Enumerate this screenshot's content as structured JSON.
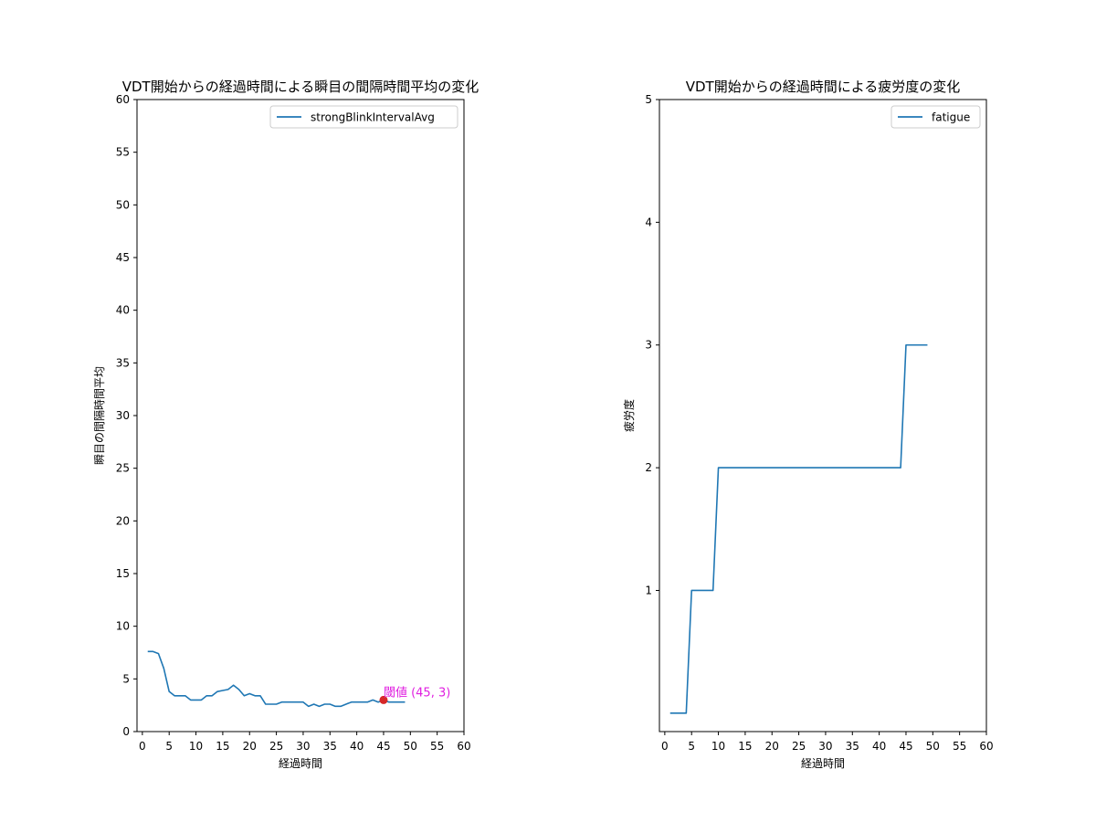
{
  "chart_data": [
    {
      "type": "line",
      "title": "VDT開始からの経過時間による瞬目の間隔時間平均の変化",
      "xlabel": "経過時間",
      "ylabel": "瞬目の間隔時間平均",
      "xlim": [
        -1,
        60
      ],
      "ylim": [
        0,
        60
      ],
      "xticks": [
        "0",
        "5",
        "10",
        "15",
        "20",
        "25",
        "30",
        "35",
        "40",
        "45",
        "50",
        "55",
        "60"
      ],
      "yticks": [
        "0",
        "5",
        "10",
        "15",
        "20",
        "25",
        "30",
        "35",
        "40",
        "45",
        "50",
        "55",
        "60"
      ],
      "xtick_values": [
        0,
        5,
        10,
        15,
        20,
        25,
        30,
        35,
        40,
        45,
        50,
        55,
        60
      ],
      "ytick_values": [
        0,
        5,
        10,
        15,
        20,
        25,
        30,
        35,
        40,
        45,
        50,
        55,
        60
      ],
      "grid": false,
      "legend": "top-right",
      "series": [
        {
          "name": "strongBlinkIntervalAvg",
          "color": "#1f77b4",
          "x": [
            1,
            2,
            3,
            4,
            5,
            6,
            7,
            8,
            9,
            10,
            11,
            12,
            13,
            14,
            15,
            16,
            17,
            18,
            19,
            20,
            21,
            22,
            23,
            24,
            25,
            26,
            27,
            28,
            29,
            30,
            31,
            32,
            33,
            34,
            35,
            36,
            37,
            38,
            39,
            40,
            41,
            42,
            43,
            44,
            45,
            46,
            47,
            48,
            49
          ],
          "y": [
            7.6,
            7.6,
            7.4,
            6.0,
            3.8,
            3.4,
            3.4,
            3.4,
            3.0,
            3.0,
            3.0,
            3.4,
            3.4,
            3.8,
            3.9,
            4.0,
            4.4,
            4.0,
            3.4,
            3.6,
            3.4,
            3.4,
            2.6,
            2.6,
            2.6,
            2.8,
            2.8,
            2.8,
            2.8,
            2.8,
            2.4,
            2.6,
            2.4,
            2.6,
            2.6,
            2.4,
            2.4,
            2.6,
            2.8,
            2.8,
            2.8,
            2.8,
            3.0,
            2.8,
            3.0,
            2.8,
            2.8,
            2.8,
            2.8
          ]
        }
      ],
      "annotation": {
        "text": "閾値 (45, 3)",
        "x": 45,
        "y": 3,
        "color": "#e020e0",
        "marker_color": "#d62728"
      }
    },
    {
      "type": "line",
      "title": "VDT開始からの経過時間による疲労度の変化",
      "xlabel": "経過時間",
      "ylabel": "疲労度",
      "xlim": [
        -1,
        60
      ],
      "ylim": [
        -0.15,
        5
      ],
      "xticks": [
        "0",
        "5",
        "10",
        "15",
        "20",
        "25",
        "30",
        "35",
        "40",
        "45",
        "50",
        "55",
        "60"
      ],
      "yticks": [
        "1",
        "2",
        "3",
        "4",
        "5"
      ],
      "xtick_values": [
        0,
        5,
        10,
        15,
        20,
        25,
        30,
        35,
        40,
        45,
        50,
        55,
        60
      ],
      "ytick_values": [
        1,
        2,
        3,
        4,
        5
      ],
      "grid": false,
      "legend": "top-right",
      "series": [
        {
          "name": "fatigue",
          "color": "#1f77b4",
          "x": [
            1,
            2,
            3,
            4,
            5,
            6,
            7,
            8,
            9,
            10,
            11,
            12,
            13,
            14,
            15,
            16,
            17,
            18,
            19,
            20,
            21,
            22,
            23,
            24,
            25,
            26,
            27,
            28,
            29,
            30,
            31,
            32,
            33,
            34,
            35,
            36,
            37,
            38,
            39,
            40,
            41,
            42,
            43,
            44,
            45,
            46,
            47,
            48,
            49
          ],
          "y": [
            0,
            0,
            0,
            0,
            1,
            1,
            1,
            1,
            1,
            2,
            2,
            2,
            2,
            2,
            2,
            2,
            2,
            2,
            2,
            2,
            2,
            2,
            2,
            2,
            2,
            2,
            2,
            2,
            2,
            2,
            2,
            2,
            2,
            2,
            2,
            2,
            2,
            2,
            2,
            2,
            2,
            2,
            2,
            2,
            3,
            3,
            3,
            3,
            3
          ]
        }
      ]
    }
  ]
}
